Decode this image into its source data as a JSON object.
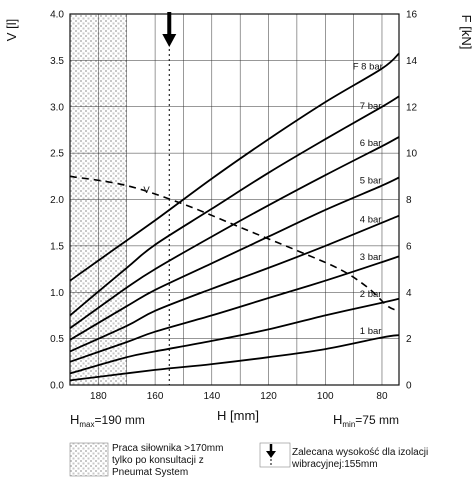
{
  "chart_data": {
    "type": "line",
    "y_left_label": "V [l]",
    "y_right_label": "F [kN]",
    "x_label": "H [mm]",
    "x_reversed": true,
    "xlim": [
      190,
      74
    ],
    "ylim_left": [
      0,
      4.0
    ],
    "ylim_right": [
      0,
      16
    ],
    "x_ticks": [
      180,
      160,
      140,
      120,
      100,
      80
    ],
    "y_left_ticks": [
      "0.0",
      "0.5",
      "1.0",
      "1.5",
      "2.0",
      "2.5",
      "3.0",
      "3.5",
      "4.0"
    ],
    "y_right_ticks": [
      "0",
      "2",
      "4",
      "6",
      "8",
      "10",
      "12",
      "14",
      "16"
    ],
    "h_max_label": {
      "main": "H",
      "sub": "max",
      "rest": "=190 mm"
    },
    "h_min_label": {
      "main": "H",
      "sub": "min",
      "rest": "=75 mm"
    },
    "recommended_height": 155,
    "hatched_region": [
      190,
      170
    ],
    "force_series": [
      {
        "name": "1 bar",
        "label_at": [
          84,
          2.2
        ],
        "points": [
          [
            190,
            0.2
          ],
          [
            160,
            0.65
          ],
          [
            140,
            0.9
          ],
          [
            120,
            1.2
          ],
          [
            100,
            1.55
          ],
          [
            80,
            2.05
          ],
          [
            74,
            2.15
          ]
        ]
      },
      {
        "name": "2 bar",
        "label_at": [
          84,
          3.8
        ],
        "points": [
          [
            190,
            0.5
          ],
          [
            170,
            1.2
          ],
          [
            160,
            1.45
          ],
          [
            140,
            1.9
          ],
          [
            120,
            2.4
          ],
          [
            100,
            3.0
          ],
          [
            80,
            3.55
          ],
          [
            74,
            3.72
          ]
        ]
      },
      {
        "name": "3 bar",
        "label_at": [
          84,
          5.4
        ],
        "points": [
          [
            190,
            1.0
          ],
          [
            170,
            1.85
          ],
          [
            160,
            2.3
          ],
          [
            140,
            3.0
          ],
          [
            120,
            3.75
          ],
          [
            100,
            4.5
          ],
          [
            80,
            5.3
          ],
          [
            74,
            5.55
          ]
        ]
      },
      {
        "name": "4 bar",
        "label_at": [
          84,
          7.0
        ],
        "points": [
          [
            190,
            1.45
          ],
          [
            170,
            2.55
          ],
          [
            160,
            3.2
          ],
          [
            140,
            4.15
          ],
          [
            120,
            5.05
          ],
          [
            100,
            6.0
          ],
          [
            80,
            7.0
          ],
          [
            74,
            7.3
          ]
        ]
      },
      {
        "name": "5 bar",
        "label_at": [
          84,
          8.7
        ],
        "points": [
          [
            190,
            1.95
          ],
          [
            170,
            3.4
          ],
          [
            160,
            4.1
          ],
          [
            140,
            5.25
          ],
          [
            120,
            6.4
          ],
          [
            100,
            7.55
          ],
          [
            80,
            8.6
          ],
          [
            74,
            8.95
          ]
        ]
      },
      {
        "name": "6 bar",
        "label_at": [
          84,
          10.3
        ],
        "points": [
          [
            190,
            2.45
          ],
          [
            170,
            4.2
          ],
          [
            160,
            5.0
          ],
          [
            140,
            6.4
          ],
          [
            120,
            7.75
          ],
          [
            100,
            9.05
          ],
          [
            80,
            10.3
          ],
          [
            74,
            10.7
          ]
        ]
      },
      {
        "name": "7 bar",
        "label_at": [
          84,
          11.9
        ],
        "points": [
          [
            190,
            3.0
          ],
          [
            170,
            5.05
          ],
          [
            160,
            6.05
          ],
          [
            140,
            7.6
          ],
          [
            120,
            9.15
          ],
          [
            100,
            10.6
          ],
          [
            80,
            12.0
          ],
          [
            74,
            12.45
          ]
        ]
      },
      {
        "name": "F 8 bar",
        "label_at": [
          85,
          13.6
        ],
        "points": [
          [
            190,
            4.5
          ],
          [
            175,
            5.8
          ],
          [
            160,
            7.1
          ],
          [
            140,
            8.9
          ],
          [
            120,
            10.6
          ],
          [
            100,
            12.2
          ],
          [
            80,
            13.65
          ],
          [
            74,
            14.3
          ]
        ]
      }
    ],
    "volume_series": {
      "name": "V",
      "label_at": [
        163,
        2.07
      ],
      "points": [
        [
          190,
          2.25
        ],
        [
          170,
          2.15
        ],
        [
          150,
          1.95
        ],
        [
          130,
          1.7
        ],
        [
          110,
          1.45
        ],
        [
          95,
          1.25
        ],
        [
          85,
          1.05
        ],
        [
          78,
          0.85
        ],
        [
          74,
          0.8
        ]
      ]
    }
  },
  "legend": {
    "hatch_text": [
      "Praca siłownika >170mm",
      "tylko po konsultacji z",
      "Pneumat System"
    ],
    "arrow_text": [
      "Zalecana wysokość dla izolacji",
      "wibracyjnej:155mm"
    ]
  }
}
